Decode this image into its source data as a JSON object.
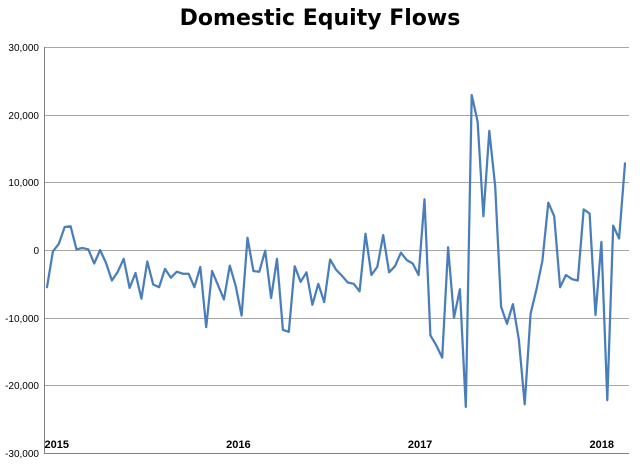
{
  "chart_data": {
    "type": "line",
    "title": "Domestic Equity Flows",
    "xlabel": "",
    "ylabel": "",
    "ylim": [
      -30000,
      30000
    ],
    "yticks": [
      30000,
      20000,
      10000,
      0,
      -10000,
      -20000,
      -30000
    ],
    "ytick_labels": [
      "30,000",
      "20,000",
      "10,000",
      "0",
      "-10,000",
      "-20,000",
      "-30,000"
    ],
    "xlim": [
      2014.93,
      2018.15
    ],
    "xticks": [
      2015,
      2016,
      2017,
      2018
    ],
    "xtick_labels": [
      "2015",
      "2016",
      "2017",
      "2018"
    ],
    "grid": true,
    "line_color": "#4a7ebb",
    "series": [
      {
        "values": [
          -5500,
          -200,
          900,
          3400,
          3500,
          100,
          300,
          100,
          -2000,
          0,
          -1900,
          -4500,
          -3200,
          -1300,
          -5600,
          -3400,
          -7200,
          -1700,
          -5100,
          -5500,
          -2800,
          -4100,
          -3200,
          -3500,
          -3500,
          -5500,
          -2500,
          -11400,
          -3100,
          -5200,
          -7300,
          -2300,
          -5300,
          -9700,
          1800,
          -3100,
          -3200,
          -100,
          -7100,
          -1300,
          -11800,
          -12100,
          -2400,
          -4700,
          -3300,
          -8100,
          -5000,
          -7700,
          -1400,
          -2900,
          -3800,
          -4800,
          -5000,
          -6100,
          2400,
          -3700,
          -2500,
          2200,
          -3300,
          -2400,
          -400,
          -1500,
          -2000,
          -3700,
          7500,
          -12600,
          -14100,
          -15900,
          400,
          -10000,
          -5800,
          -23200,
          22900,
          19000,
          5000,
          17600,
          9400,
          -8400,
          -10900,
          -8000,
          -13200,
          -22800,
          -9400,
          -5800,
          -1600,
          7000,
          5000,
          -5500,
          -3700,
          -4300,
          -4500,
          6000,
          5400,
          -9600,
          1200,
          -22200,
          3600,
          1700,
          12800
        ]
      }
    ]
  }
}
